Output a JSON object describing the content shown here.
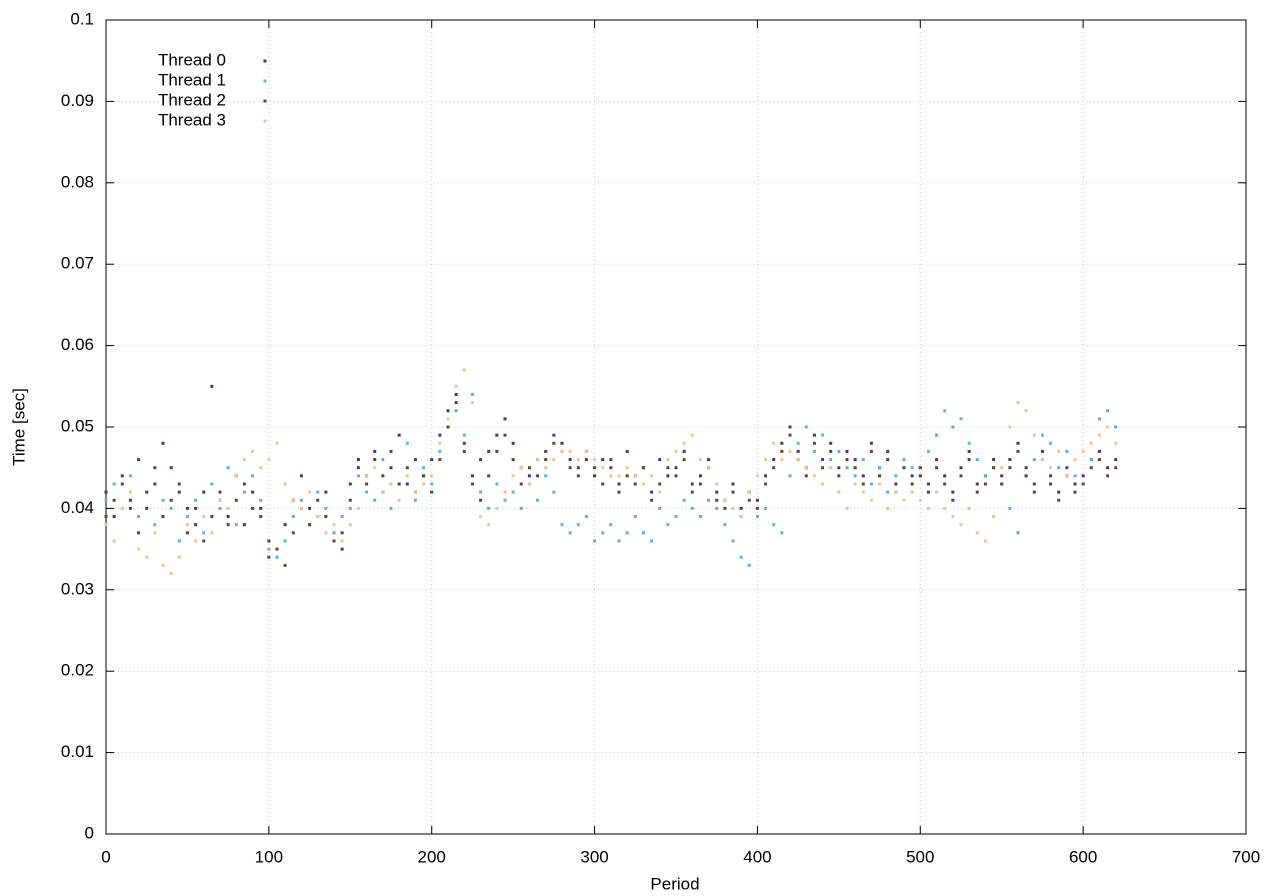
{
  "chart_data": {
    "type": "scatter",
    "x_label": "Period",
    "y_label": "Time [sec]",
    "xlim": [
      0,
      700
    ],
    "xticks": [
      0,
      100,
      200,
      300,
      400,
      500,
      600,
      700
    ],
    "ylim": [
      0,
      0.1
    ],
    "yticks": [
      0,
      0.01,
      0.02,
      0.03,
      0.04,
      0.05,
      0.06,
      0.07,
      0.08,
      0.09,
      0.1
    ],
    "grid": true,
    "legend": "top-left",
    "x": [
      0,
      5,
      10,
      15,
      20,
      25,
      30,
      35,
      40,
      45,
      50,
      55,
      60,
      65,
      70,
      75,
      80,
      85,
      90,
      95,
      100,
      105,
      110,
      115,
      120,
      125,
      130,
      135,
      140,
      145,
      150,
      155,
      160,
      165,
      170,
      175,
      180,
      185,
      190,
      195,
      200,
      205,
      210,
      215,
      220,
      225,
      230,
      235,
      240,
      245,
      250,
      255,
      260,
      265,
      270,
      275,
      280,
      285,
      290,
      295,
      300,
      305,
      310,
      315,
      320,
      325,
      330,
      335,
      340,
      345,
      350,
      355,
      360,
      365,
      370,
      375,
      380,
      385,
      390,
      395,
      400,
      405,
      410,
      415,
      420,
      425,
      430,
      435,
      440,
      445,
      450,
      455,
      460,
      465,
      470,
      475,
      480,
      485,
      490,
      495,
      500,
      505,
      510,
      515,
      520,
      525,
      530,
      535,
      540,
      545,
      550,
      555,
      560,
      565,
      570,
      575,
      580,
      585,
      590,
      595,
      600,
      605,
      610,
      615,
      620
    ],
    "series": [
      {
        "name": "Thread 0",
        "color": "#4a3a6b",
        "values": [
          0.042,
          0.039,
          0.044,
          0.041,
          0.046,
          0.04,
          0.043,
          0.048,
          0.045,
          0.042,
          0.04,
          0.038,
          0.042,
          0.055,
          0.041,
          0.039,
          0.044,
          0.038,
          0.042,
          0.04,
          0.036,
          0.034,
          0.038,
          0.041,
          0.044,
          0.04,
          0.039,
          0.042,
          0.037,
          0.035,
          0.043,
          0.046,
          0.044,
          0.047,
          0.042,
          0.045,
          0.049,
          0.043,
          0.046,
          0.044,
          0.046,
          0.049,
          0.052,
          0.054,
          0.048,
          0.044,
          0.046,
          0.047,
          0.049,
          0.051,
          0.048,
          0.045,
          0.044,
          0.046,
          0.047,
          0.049,
          0.048,
          0.046,
          0.045,
          0.047,
          0.044,
          0.046,
          0.045,
          0.043,
          0.047,
          0.044,
          0.045,
          0.042,
          0.046,
          0.044,
          0.045,
          0.047,
          0.043,
          0.044,
          0.046,
          0.042,
          0.041,
          0.043,
          0.04,
          0.042,
          0.041,
          0.044,
          0.046,
          0.048,
          0.05,
          0.047,
          0.045,
          0.049,
          0.046,
          0.048,
          0.045,
          0.047,
          0.046,
          0.044,
          0.048,
          0.045,
          0.047,
          0.043,
          0.046,
          0.044,
          0.045,
          0.043,
          0.046,
          0.044,
          0.042,
          0.045,
          0.047,
          0.043,
          0.044,
          0.046,
          0.044,
          0.046,
          0.048,
          0.045,
          0.043,
          0.047,
          0.044,
          0.042,
          0.045,
          0.043,
          0.044,
          0.046,
          0.047,
          0.045,
          0.046
        ]
      },
      {
        "name": "Thread 1",
        "color": "#56b4e9",
        "values": [
          0.041,
          0.043,
          0.04,
          0.044,
          0.039,
          0.042,
          0.038,
          0.041,
          0.04,
          0.036,
          0.039,
          0.041,
          0.037,
          0.043,
          0.04,
          0.045,
          0.038,
          0.042,
          0.044,
          0.041,
          0.035,
          0.034,
          0.036,
          0.039,
          0.041,
          0.038,
          0.042,
          0.04,
          0.037,
          0.039,
          0.04,
          0.044,
          0.042,
          0.041,
          0.046,
          0.04,
          0.043,
          0.048,
          0.041,
          0.045,
          0.043,
          0.047,
          0.05,
          0.052,
          0.049,
          0.054,
          0.042,
          0.04,
          0.043,
          0.041,
          0.042,
          0.04,
          0.043,
          0.041,
          0.044,
          0.042,
          0.038,
          0.037,
          0.038,
          0.039,
          0.036,
          0.037,
          0.038,
          0.036,
          0.037,
          0.039,
          0.037,
          0.036,
          0.04,
          0.038,
          0.039,
          0.041,
          0.04,
          0.039,
          0.041,
          0.04,
          0.038,
          0.036,
          0.034,
          0.033,
          0.039,
          0.04,
          0.038,
          0.037,
          0.044,
          0.048,
          0.05,
          0.047,
          0.049,
          0.046,
          0.047,
          0.045,
          0.044,
          0.046,
          0.043,
          0.045,
          0.042,
          0.044,
          0.046,
          0.045,
          0.044,
          0.047,
          0.049,
          0.052,
          0.05,
          0.051,
          0.048,
          0.046,
          0.044,
          0.045,
          0.043,
          0.04,
          0.037,
          0.044,
          0.046,
          0.049,
          0.048,
          0.045,
          0.047,
          0.044,
          0.043,
          0.046,
          0.051,
          0.052,
          0.05
        ]
      },
      {
        "name": "Thread 2",
        "color": "#5a4a30",
        "values": [
          0.039,
          0.041,
          0.043,
          0.04,
          0.037,
          0.042,
          0.045,
          0.039,
          0.041,
          0.043,
          0.037,
          0.04,
          0.036,
          0.039,
          0.042,
          0.038,
          0.041,
          0.043,
          0.04,
          0.039,
          0.034,
          0.035,
          0.033,
          0.037,
          0.04,
          0.038,
          0.041,
          0.039,
          0.036,
          0.037,
          0.041,
          0.045,
          0.043,
          0.046,
          0.044,
          0.047,
          0.043,
          0.045,
          0.042,
          0.044,
          0.042,
          0.046,
          0.05,
          0.053,
          0.047,
          0.043,
          0.041,
          0.044,
          0.047,
          0.049,
          0.046,
          0.043,
          0.045,
          0.044,
          0.046,
          0.048,
          0.047,
          0.045,
          0.044,
          0.046,
          0.045,
          0.043,
          0.046,
          0.042,
          0.044,
          0.043,
          0.045,
          0.041,
          0.043,
          0.045,
          0.044,
          0.046,
          0.042,
          0.043,
          0.045,
          0.041,
          0.04,
          0.042,
          0.039,
          0.041,
          0.04,
          0.043,
          0.045,
          0.047,
          0.049,
          0.046,
          0.044,
          0.048,
          0.045,
          0.047,
          0.044,
          0.046,
          0.045,
          0.043,
          0.047,
          0.044,
          0.046,
          0.042,
          0.045,
          0.043,
          0.044,
          0.042,
          0.045,
          0.043,
          0.041,
          0.044,
          0.046,
          0.042,
          0.043,
          0.045,
          0.043,
          0.045,
          0.047,
          0.044,
          0.042,
          0.046,
          0.043,
          0.041,
          0.044,
          0.042,
          0.043,
          0.045,
          0.046,
          0.044,
          0.045
        ]
      },
      {
        "name": "Thread 3",
        "color": "#f5c08a",
        "values": [
          0.038,
          0.036,
          0.04,
          0.042,
          0.035,
          0.034,
          0.037,
          0.033,
          0.032,
          0.034,
          0.038,
          0.036,
          0.039,
          0.037,
          0.041,
          0.04,
          0.044,
          0.046,
          0.047,
          0.045,
          0.046,
          0.048,
          0.043,
          0.041,
          0.04,
          0.042,
          0.039,
          0.037,
          0.038,
          0.036,
          0.038,
          0.04,
          0.044,
          0.045,
          0.042,
          0.043,
          0.041,
          0.044,
          0.042,
          0.043,
          0.044,
          0.048,
          0.051,
          0.055,
          0.057,
          0.053,
          0.039,
          0.038,
          0.04,
          0.042,
          0.044,
          0.045,
          0.043,
          0.046,
          0.045,
          0.046,
          0.047,
          0.047,
          0.046,
          0.047,
          0.046,
          0.045,
          0.044,
          0.044,
          0.045,
          0.044,
          0.043,
          0.044,
          0.042,
          0.046,
          0.047,
          0.048,
          0.049,
          0.046,
          0.045,
          0.043,
          0.041,
          0.04,
          0.039,
          0.042,
          0.044,
          0.046,
          0.048,
          0.046,
          0.047,
          0.046,
          0.045,
          0.044,
          0.043,
          0.045,
          0.042,
          0.04,
          0.043,
          0.042,
          0.041,
          0.043,
          0.04,
          0.042,
          0.041,
          0.042,
          0.041,
          0.04,
          0.042,
          0.04,
          0.039,
          0.038,
          0.04,
          0.037,
          0.036,
          0.039,
          0.045,
          0.05,
          0.053,
          0.052,
          0.049,
          0.046,
          0.045,
          0.047,
          0.044,
          0.046,
          0.047,
          0.048,
          0.049,
          0.05,
          0.048
        ]
      }
    ]
  }
}
